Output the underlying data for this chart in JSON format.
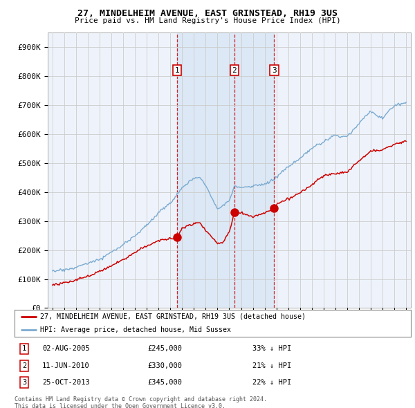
{
  "title1": "27, MINDELHEIM AVENUE, EAST GRINSTEAD, RH19 3US",
  "title2": "Price paid vs. HM Land Registry's House Price Index (HPI)",
  "background_color": "#ffffff",
  "chart_bg_color": "#eef3fb",
  "grid_color": "#cccccc",
  "red_color": "#cc0000",
  "blue_color": "#7aaad0",
  "shade_color": "#dce8f5",
  "transactions": [
    {
      "num": 1,
      "date_label": "02-AUG-2005",
      "x": 2005.58,
      "price": 245000,
      "pct": "33%"
    },
    {
      "num": 2,
      "date_label": "11-JUN-2010",
      "x": 2010.44,
      "price": 330000,
      "pct": "21%"
    },
    {
      "num": 3,
      "date_label": "25-OCT-2013",
      "x": 2013.81,
      "price": 345000,
      "pct": "22%"
    }
  ],
  "legend_line1": "27, MINDELHEIM AVENUE, EAST GRINSTEAD, RH19 3US (detached house)",
  "legend_line2": "HPI: Average price, detached house, Mid Sussex",
  "footnote1": "Contains HM Land Registry data © Crown copyright and database right 2024.",
  "footnote2": "This data is licensed under the Open Government Licence v3.0.",
  "ylim": [
    0,
    950000
  ],
  "yticks": [
    0,
    100000,
    200000,
    300000,
    400000,
    500000,
    600000,
    700000,
    800000,
    900000
  ],
  "xlim_start": 1994.6,
  "xlim_end": 2025.4
}
